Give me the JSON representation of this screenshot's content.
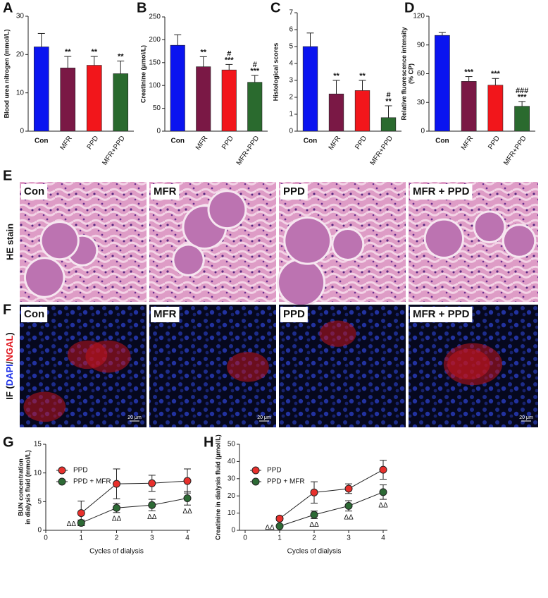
{
  "chart_data": [
    {
      "type": "bar",
      "panel": "A",
      "ylabel": "Blood urea nitrogen (mmol/L)",
      "categories": [
        "Con",
        "MFR",
        "PPD",
        "MFR+PPD"
      ],
      "colors": [
        "#0a14f0",
        "#7a1845",
        "#f2161b",
        "#2a6a2e"
      ],
      "values": [
        22,
        16.5,
        17.2,
        15
      ],
      "errors": [
        3.5,
        3.0,
        2.3,
        3.3
      ],
      "annotations": [
        null,
        [
          "**"
        ],
        [
          "**"
        ],
        [
          "**"
        ]
      ],
      "ylim": [
        0,
        30
      ],
      "yticks": [
        0,
        10,
        20,
        30
      ]
    },
    {
      "type": "bar",
      "panel": "B",
      "ylabel": "Creatinine (μmol/L)",
      "categories": [
        "Con",
        "MFR",
        "PPD",
        "MFR+PPD"
      ],
      "colors": [
        "#0a14f0",
        "#7a1845",
        "#f2161b",
        "#2a6a2e"
      ],
      "values": [
        188,
        141,
        134,
        107
      ],
      "errors": [
        23,
        22,
        12,
        15
      ],
      "annotations": [
        null,
        [
          "**"
        ],
        [
          "#",
          "***"
        ],
        [
          "#",
          "***"
        ]
      ],
      "ylim": [
        0,
        250
      ],
      "yticks": [
        0,
        50,
        100,
        150,
        200,
        250
      ]
    },
    {
      "type": "bar",
      "panel": "C",
      "ylabel": "Histological scores",
      "categories": [
        "Con",
        "MFR",
        "PPD",
        "MFR+PPD"
      ],
      "colors": [
        "#0a14f0",
        "#7a1845",
        "#f2161b",
        "#2a6a2e"
      ],
      "values": [
        5.0,
        2.2,
        2.4,
        0.8
      ],
      "errors": [
        0.8,
        0.8,
        0.6,
        0.7
      ],
      "annotations": [
        null,
        [
          "**"
        ],
        [
          "**"
        ],
        [
          "#",
          "**"
        ]
      ],
      "ylim": [
        0,
        7
      ],
      "yticks": [
        0,
        1,
        2,
        3,
        4,
        5,
        6,
        7
      ]
    },
    {
      "type": "bar",
      "panel": "D",
      "ylabel": [
        "Relative fluorescence intensity",
        "(% CP)"
      ],
      "categories": [
        "Con",
        "MFR",
        "PPD",
        "MFR+PPD"
      ],
      "colors": [
        "#0a14f0",
        "#7a1845",
        "#f2161b",
        "#2a6a2e"
      ],
      "values": [
        100,
        52,
        48,
        26
      ],
      "errors": [
        3,
        5,
        7,
        5
      ],
      "annotations": [
        null,
        [
          "***"
        ],
        [
          "***"
        ],
        [
          "###",
          "***"
        ]
      ],
      "ylim": [
        0,
        120
      ],
      "yticks": [
        0,
        30,
        60,
        90,
        120
      ]
    },
    {
      "type": "line",
      "panel": "G",
      "ylabel": [
        "BUN concentration",
        "in dialysis fluid (mmol/L)"
      ],
      "xlabel": "Cycles of dialysis",
      "x": [
        1,
        2,
        3,
        4
      ],
      "series": [
        {
          "name": "PPD",
          "color": "#e8302c",
          "values": [
            3.0,
            8.1,
            8.2,
            8.6
          ],
          "errors": [
            2.1,
            2.6,
            1.4,
            2.1
          ]
        },
        {
          "name": "PPD + MFR",
          "color": "#2d6a35",
          "values": [
            1.3,
            3.9,
            4.4,
            5.6
          ],
          "errors": [
            0.5,
            0.8,
            1.0,
            1.2
          ]
        }
      ],
      "annotations": [
        "ΔΔ",
        "ΔΔ",
        "ΔΔ",
        "ΔΔ"
      ],
      "xlim": [
        0,
        4
      ],
      "xticks": [
        0,
        1,
        2,
        3,
        4
      ],
      "ylim": [
        0,
        15
      ],
      "yticks": [
        0,
        5,
        10,
        15
      ]
    },
    {
      "type": "line",
      "panel": "H",
      "ylabel": "Creatinine in dialysis fluid (μmol/L)",
      "xlabel": "Cycles of dialysis",
      "x": [
        1,
        2,
        3,
        4
      ],
      "series": [
        {
          "name": "PPD",
          "color": "#e8302c",
          "values": [
            6.8,
            22,
            24.2,
            35.2
          ],
          "errors": [
            1.2,
            6.2,
            2.8,
            5.5
          ]
        },
        {
          "name": "PPD + MFR",
          "color": "#2d6a35",
          "values": [
            2.4,
            9.0,
            14.2,
            22.2
          ],
          "errors": [
            0.5,
            2.2,
            3.0,
            4.2
          ]
        }
      ],
      "annotations": [
        "ΔΔ",
        "ΔΔ",
        "ΔΔ",
        "ΔΔ"
      ],
      "xlim": [
        0,
        4
      ],
      "xticks": [
        0,
        1,
        2,
        3,
        4
      ],
      "ylim": [
        0,
        50
      ],
      "yticks": [
        0,
        10,
        20,
        30,
        40,
        50
      ]
    }
  ],
  "images": {
    "he": {
      "panel": "E",
      "row_label": "HE stain",
      "labels": [
        "Con",
        "MFR",
        "PPD",
        "MFR + PPD"
      ]
    },
    "if": {
      "panel": "F",
      "row_label": [
        "IF (",
        "DAPI",
        "/",
        "NGAL",
        ")"
      ],
      "labels": [
        "Con",
        "MFR",
        "PPD",
        "MFR + PPD"
      ],
      "scale_bars": [
        "20 μm",
        "20 μm",
        "20 μm"
      ]
    }
  }
}
